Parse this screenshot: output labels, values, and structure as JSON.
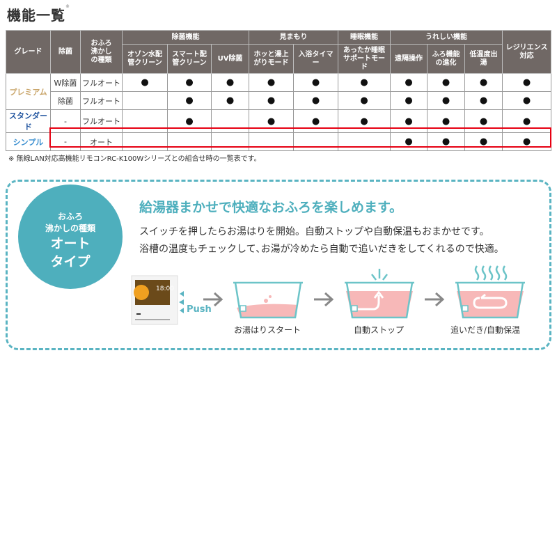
{
  "title": "機能一覧",
  "title_mark": "®",
  "table": {
    "headers": {
      "grade": "グレード",
      "jokin": "除菌",
      "type": "おふろ沸かしの種類",
      "resilience": "レジリエンス対応"
    },
    "groups": [
      {
        "label": "除菌機能",
        "cols": [
          "オゾン水配管クリーン",
          "スマート配管クリーン",
          "UV除菌"
        ]
      },
      {
        "label": "見まもり",
        "cols": [
          "ホッと湯上がりモード",
          "入浴タイマー"
        ]
      },
      {
        "label": "睡眠機能",
        "cols": [
          "あったか睡眠サポートモード"
        ]
      },
      {
        "label": "うれしい機能",
        "cols": [
          "遠隔操作",
          "ふろ機能の進化",
          "低温度出湯"
        ]
      }
    ],
    "grades": [
      {
        "label": "プレミアム",
        "color": "#c9a56a"
      },
      {
        "label": "スタンダード",
        "color": "#1a4f9c"
      },
      {
        "label": "シンプル",
        "color": "#3a8fd0"
      }
    ],
    "dot": "●",
    "rows": [
      {
        "jokin": "W除菌",
        "type": "フルオート",
        "features": [
          true,
          true,
          true,
          true,
          true,
          true,
          true,
          true,
          true,
          true
        ]
      },
      {
        "jokin": "除菌",
        "type": "フルオート",
        "features": [
          false,
          true,
          true,
          true,
          true,
          true,
          true,
          true,
          true,
          true
        ]
      },
      {
        "jokin": "-",
        "type": "フルオート",
        "features": [
          false,
          true,
          false,
          true,
          true,
          true,
          true,
          true,
          true,
          true
        ]
      },
      {
        "jokin": "-",
        "type": "オート",
        "features": [
          false,
          false,
          false,
          false,
          false,
          false,
          true,
          true,
          true,
          true
        ],
        "highlighted": true
      }
    ],
    "highlight_color": "#e60012"
  },
  "note": "※ 無線LAN対応高機能リモコンRC-K100Wシリーズとの組合せ時の一覧表です。",
  "panel": {
    "accent": "#4eafbd",
    "circle": {
      "line1": "おふろ",
      "line2": "沸かしの種類",
      "line3": "オート",
      "line4": "タイプ"
    },
    "headline": "給湯器まかせで快適なおふろを楽しめます。",
    "body1": "スイッチを押したらお湯はりを開始。自動ストップや自動保温もおまかせです。",
    "body2": "浴槽の温度もチェックして､お湯が冷めたら自動で追いだきをしてくれるので快適。",
    "remote_time": "18:00",
    "push": "Push",
    "steps": [
      "お湯はりスタート",
      "自動ストップ",
      "追いだき/自動保温"
    ]
  }
}
